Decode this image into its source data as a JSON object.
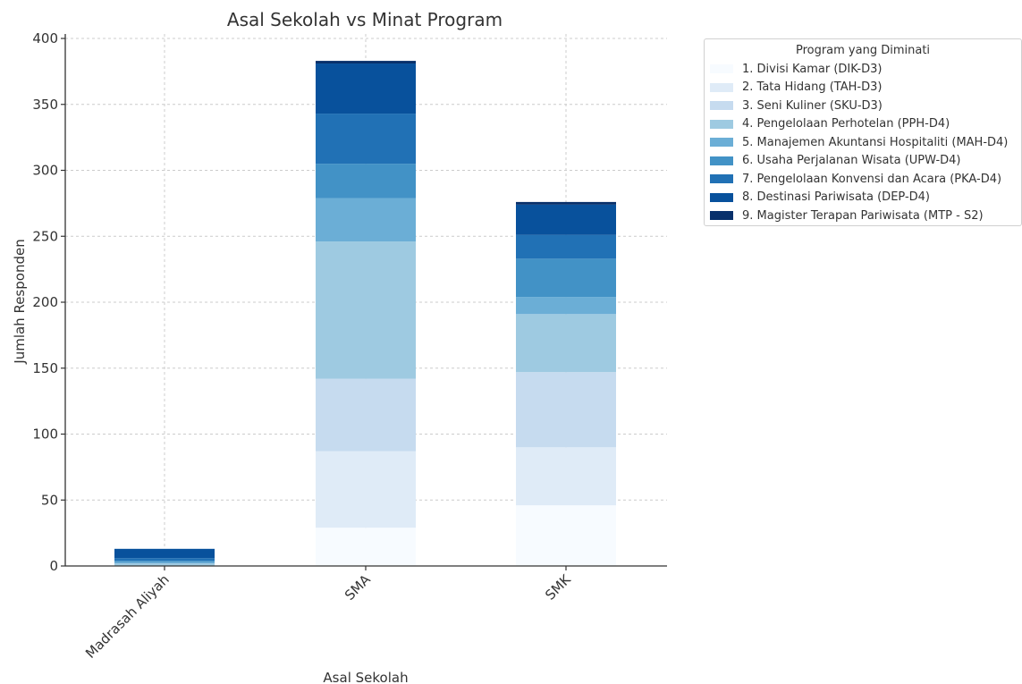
{
  "chart_data": {
    "type": "bar",
    "stacked": true,
    "title": "Asal Sekolah vs Minat Program",
    "xlabel": "Asal Sekolah",
    "ylabel": "Jumlah Responden",
    "ylim": [
      0,
      400
    ],
    "yticks": [
      "0",
      "50",
      "100",
      "150",
      "200",
      "250",
      "300",
      "350",
      "400"
    ],
    "grid": true,
    "categories": [
      "Madrasah Aliyah",
      "SMA",
      "SMK"
    ],
    "legend": {
      "title": "Program yang Diminati",
      "placement": "outside-top-right"
    },
    "series": [
      {
        "name": "1. Divisi Kamar (DIK-D3)",
        "color": "#f7fbff",
        "values": [
          0,
          29,
          46
        ]
      },
      {
        "name": "2. Tata Hidang (TAH-D3)",
        "color": "#dfebf7",
        "values": [
          0,
          58,
          44
        ]
      },
      {
        "name": "3. Seni Kuliner (SKU-D3)",
        "color": "#c6dbef",
        "values": [
          0,
          55,
          57
        ]
      },
      {
        "name": "4. Pengelolaan Perhotelan (PPH-D4)",
        "color": "#9ecae1",
        "values": [
          2,
          104,
          44
        ]
      },
      {
        "name": "5. Manajemen Akuntansi Hospitaliti (MAH-D4)",
        "color": "#6baed6",
        "values": [
          1,
          33,
          13
        ]
      },
      {
        "name": "6. Usaha Perjalanan Wisata (UPW-D4)",
        "color": "#4292c6",
        "values": [
          1,
          26,
          29
        ]
      },
      {
        "name": "7. Pengelolaan Konvensi dan Acara (PKA-D4)",
        "color": "#2171b5",
        "values": [
          2,
          38,
          18
        ]
      },
      {
        "name": "8. Destinasi Pariwisata (DEP-D4)",
        "color": "#08519c",
        "values": [
          7,
          38,
          23
        ]
      },
      {
        "name": "9. Magister Terapan Pariwisata (MTP - S2)",
        "color": "#08306b",
        "values": [
          0,
          2,
          2
        ]
      }
    ]
  }
}
